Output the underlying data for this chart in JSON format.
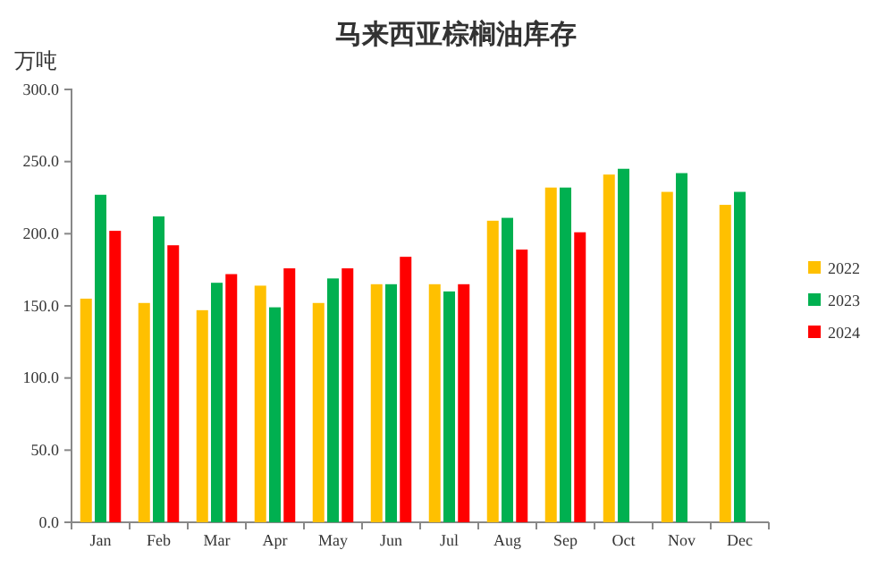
{
  "chart_data": {
    "type": "bar",
    "title": "马来西亚棕榈油库存",
    "ylabel": "万吨",
    "categories": [
      "Jan",
      "Feb",
      "Mar",
      "Apr",
      "May",
      "Jun",
      "Jul",
      "Aug",
      "Sep",
      "Oct",
      "Nov",
      "Dec"
    ],
    "series": [
      {
        "name": "2022",
        "color": "#ffc000",
        "values": [
          155,
          152,
          147,
          164,
          152,
          165,
          165,
          209,
          232,
          241,
          229,
          220
        ]
      },
      {
        "name": "2023",
        "color": "#00b050",
        "values": [
          227,
          212,
          166,
          149,
          169,
          165,
          160,
          211,
          232,
          245,
          242,
          229
        ]
      },
      {
        "name": "2024",
        "color": "#ff0000",
        "values": [
          202,
          192,
          172,
          176,
          176,
          184,
          165,
          189,
          201,
          null,
          null,
          null
        ]
      }
    ],
    "ylim": [
      0,
      300
    ],
    "yticks": [
      {
        "value": 0,
        "label": "0.0"
      },
      {
        "value": 50,
        "label": "50.0"
      },
      {
        "value": 100,
        "label": "100.0"
      },
      {
        "value": 150,
        "label": "150.0"
      },
      {
        "value": 200,
        "label": "200.0"
      },
      {
        "value": 250,
        "label": "250.0"
      },
      {
        "value": 300,
        "label": "300.0"
      }
    ],
    "grid": false,
    "legend": "right"
  }
}
